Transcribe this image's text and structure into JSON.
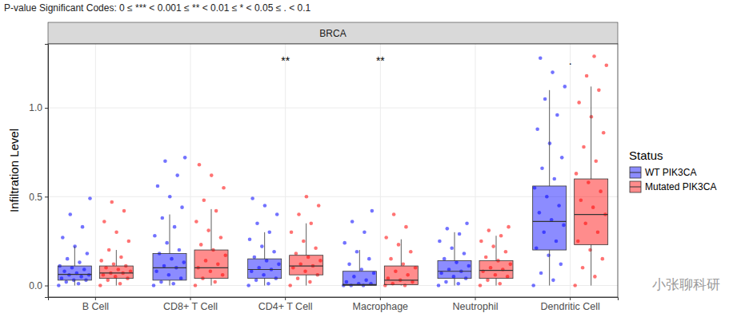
{
  "chart_data": {
    "type": "box",
    "title": "P-value Significant Codes: 0 ≤ *** < 0.001 ≤ ** < 0.01 ≤ * < 0.05 ≤ . < 0.1",
    "subtitle": "BRCA",
    "y_label": "Infiltration Level",
    "legend_title": "Status",
    "watermark": "小张聊科研",
    "categories": [
      "B Cell",
      "CD8+ T Cell",
      "CD4+ T Cell",
      "Macrophage",
      "Neutrophil",
      "Dendritic Cell"
    ],
    "significance": [
      null,
      null,
      "**",
      "**",
      null,
      "."
    ],
    "ylim": [
      -0.065,
      1.36
    ],
    "yticks": [
      {
        "value": 0,
        "label": "0.0"
      },
      {
        "value": 0.5,
        "label": "0.5"
      },
      {
        "value": 1,
        "label": "1.0"
      }
    ],
    "grid": true,
    "legend": "right",
    "series": [
      {
        "name": "WT PIK3CA",
        "color": "#0000ff",
        "boxes": [
          {
            "min": 0,
            "q1": 0.03,
            "median": 0.063,
            "q3": 0.11,
            "max": 0.22
          },
          {
            "min": 0,
            "q1": 0.03,
            "median": 0.1,
            "q3": 0.18,
            "max": 0.4
          },
          {
            "min": 0,
            "q1": 0.04,
            "median": 0.09,
            "q3": 0.15,
            "max": 0.3
          },
          {
            "min": 0,
            "q1": 0,
            "median": 0.005,
            "q3": 0.08,
            "max": 0.2
          },
          {
            "min": 0,
            "q1": 0.04,
            "median": 0.08,
            "q3": 0.14,
            "max": 0.3
          },
          {
            "min": 0,
            "q1": 0.2,
            "median": 0.36,
            "q3": 0.56,
            "max": 1.1
          }
        ],
        "points": [
          [
            0,
            0.01,
            0.02,
            0.03,
            0.03,
            0.04,
            0.05,
            0.06,
            0.06,
            0.07,
            0.08,
            0.09,
            0.1,
            0.11,
            0.13,
            0.15,
            0.18,
            0.22,
            0.27,
            0.33,
            0.4,
            0.49
          ],
          [
            0,
            0.01,
            0.02,
            0.04,
            0.06,
            0.08,
            0.1,
            0.11,
            0.13,
            0.15,
            0.18,
            0.2,
            0.24,
            0.28,
            0.33,
            0.38,
            0.44,
            0.5,
            0.56,
            0.62,
            0.7,
            0.72
          ],
          [
            0,
            0.01,
            0.03,
            0.04,
            0.06,
            0.08,
            0.09,
            0.1,
            0.12,
            0.14,
            0.16,
            0.19,
            0.22,
            0.26,
            0.3,
            0.35,
            0.4,
            0.45,
            0.49
          ],
          [
            0,
            0,
            0,
            0.01,
            0.01,
            0.02,
            0.03,
            0.05,
            0.07,
            0.09,
            0.12,
            0.15,
            0.19,
            0.24,
            0.3,
            0.36,
            0.42
          ],
          [
            0,
            0.01,
            0.02,
            0.04,
            0.05,
            0.07,
            0.08,
            0.09,
            0.11,
            0.13,
            0.15,
            0.18,
            0.21,
            0.25,
            0.29,
            0.32,
            0.35
          ],
          [
            0,
            0.03,
            0.07,
            0.12,
            0.17,
            0.21,
            0.25,
            0.3,
            0.34,
            0.37,
            0.41,
            0.45,
            0.5,
            0.55,
            0.6,
            0.66,
            0.72,
            0.8,
            0.88,
            0.96,
            1.05,
            1.12,
            1.2,
            1.28
          ]
        ]
      },
      {
        "name": "Mutated PIK3CA",
        "color": "#ff0000",
        "boxes": [
          {
            "min": 0,
            "q1": 0.04,
            "median": 0.07,
            "q3": 0.11,
            "max": 0.2
          },
          {
            "min": 0,
            "q1": 0.04,
            "median": 0.1,
            "q3": 0.2,
            "max": 0.43
          },
          {
            "min": 0,
            "q1": 0.06,
            "median": 0.11,
            "q3": 0.17,
            "max": 0.35
          },
          {
            "min": 0,
            "q1": 0.005,
            "median": 0.03,
            "q3": 0.11,
            "max": 0.26
          },
          {
            "min": 0,
            "q1": 0.04,
            "median": 0.085,
            "q3": 0.14,
            "max": 0.28
          },
          {
            "min": 0,
            "q1": 0.23,
            "median": 0.4,
            "q3": 0.6,
            "max": 1.12
          }
        ],
        "points": [
          [
            0,
            0.01,
            0.03,
            0.04,
            0.05,
            0.06,
            0.07,
            0.07,
            0.08,
            0.09,
            0.1,
            0.11,
            0.12,
            0.14,
            0.16,
            0.2,
            0.25,
            0.3,
            0.36,
            0.42,
            0.47
          ],
          [
            0,
            0.02,
            0.04,
            0.06,
            0.08,
            0.1,
            0.12,
            0.14,
            0.17,
            0.2,
            0.23,
            0.27,
            0.31,
            0.36,
            0.42,
            0.48,
            0.55,
            0.62,
            0.68
          ],
          [
            0,
            0.02,
            0.04,
            0.06,
            0.08,
            0.1,
            0.11,
            0.12,
            0.14,
            0.16,
            0.18,
            0.21,
            0.25,
            0.3,
            0.35,
            0.4,
            0.45,
            0.5
          ],
          [
            0,
            0,
            0.01,
            0.02,
            0.03,
            0.04,
            0.06,
            0.08,
            0.1,
            0.12,
            0.15,
            0.19,
            0.23,
            0.27,
            0.33,
            0.4
          ],
          [
            0,
            0.01,
            0.03,
            0.05,
            0.06,
            0.08,
            0.09,
            0.1,
            0.12,
            0.14,
            0.16,
            0.19,
            0.22,
            0.25,
            0.28,
            0.31,
            0.33
          ],
          [
            0,
            0.05,
            0.1,
            0.15,
            0.2,
            0.25,
            0.3,
            0.35,
            0.4,
            0.44,
            0.48,
            0.53,
            0.58,
            0.63,
            0.7,
            0.78,
            0.86,
            0.95,
            1.03,
            1.1,
            1.18,
            1.24,
            1.29
          ]
        ]
      }
    ]
  }
}
